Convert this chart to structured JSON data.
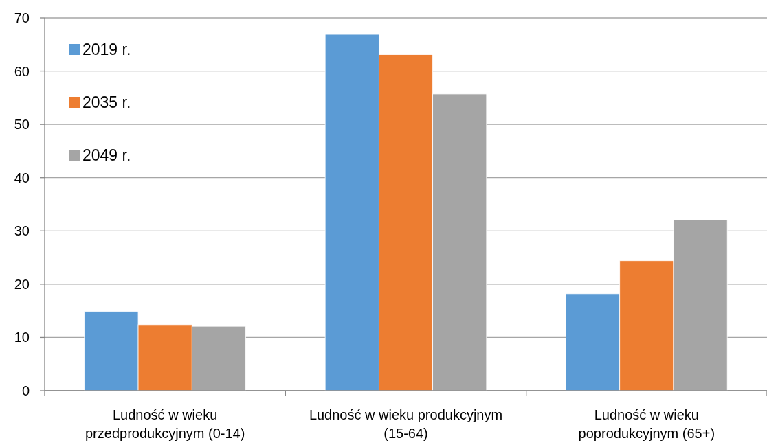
{
  "chart_data": {
    "type": "bar",
    "categories": [
      "Ludność w wieku przedprodukcyjnym (0-14)",
      "Ludność w wieku produkcyjnym (15-64)",
      "Ludność w wieku poprodukcyjnym (65+)"
    ],
    "series": [
      {
        "name": "2019 r.",
        "color": "#5b9bd5",
        "values": [
          14.9,
          66.9,
          18.2
        ]
      },
      {
        "name": "2035 r.",
        "color": "#ed7d31",
        "values": [
          12.4,
          63.1,
          24.4
        ]
      },
      {
        "name": "2049 r.",
        "color": "#a5a5a5",
        "values": [
          12.1,
          55.7,
          32.1
        ]
      }
    ],
    "ylim": [
      0,
      70
    ],
    "yticks": [
      0,
      10,
      20,
      30,
      40,
      50,
      60,
      70
    ],
    "grid": "y",
    "legend": "top left"
  }
}
